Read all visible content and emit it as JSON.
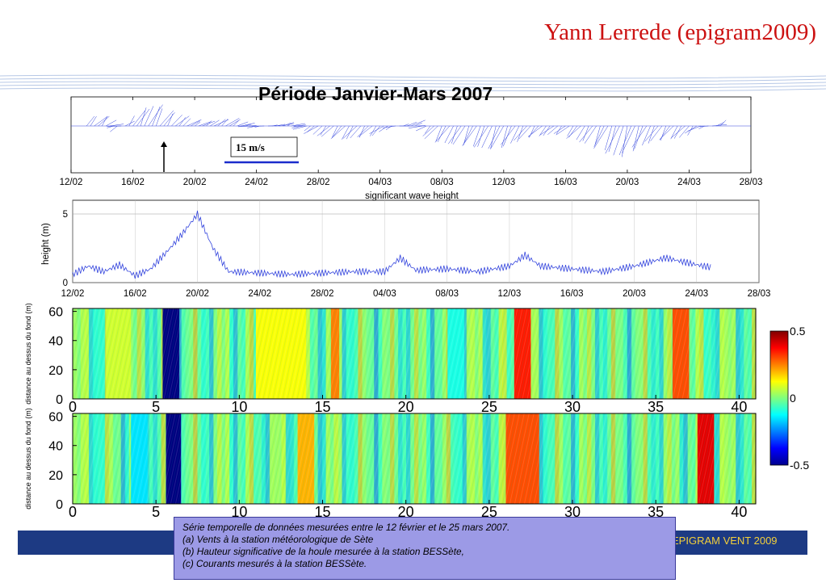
{
  "header": {
    "author": "Yann Lerrede (epigram2009)"
  },
  "footer": {
    "label": "EPIGRAM VENT 2009"
  },
  "caption": {
    "lines": [
      "Série temporelle de données mesurées entre le 12 février et le 25 mars 2007.",
      "(a)  Vents à la station météorologique de Sète",
      "(b)   Hauteur significative de la houle mesurée à la station BESSète,",
      "(c) Courants mesurés à la station BESSète."
    ]
  },
  "colors": {
    "author": "#cc1111",
    "footer_bar": "#1d3a83",
    "footer_text": "#f3cf3a",
    "caption_bg": "#9c9ae6",
    "series_line": "#3344dd"
  },
  "chart_data": [
    {
      "type": "line",
      "title": "Période Janvier-Mars 2007",
      "subtype": "wind stick plot",
      "x_ticks": [
        "12/02",
        "16/02",
        "20/02",
        "24/02",
        "28/02",
        "04/03",
        "08/03",
        "12/03",
        "16/03",
        "20/03",
        "24/03",
        "28/03"
      ],
      "scale_label": "15 m/s",
      "series": [
        {
          "x": [
            "14/02",
            "15/02",
            "16/02",
            "17/02",
            "18/02",
            "20/02",
            "22/02",
            "24/02",
            "26/02",
            "28/02",
            "02/03",
            "04/03",
            "06/03",
            "08/03",
            "10/03",
            "12/03",
            "14/03",
            "16/03",
            "18/03",
            "20/03",
            "22/03",
            "24/03",
            "26/03"
          ],
          "values": [
            5,
            -3,
            8,
            11,
            7,
            2,
            4,
            -1,
            2,
            -4,
            -7,
            -5,
            3,
            -8,
            -10,
            -12,
            -6,
            -4,
            -9,
            -16,
            -8,
            -6,
            3
          ]
        }
      ]
    },
    {
      "type": "line",
      "title": "significant wave height",
      "ylabel": "height (m)",
      "ylim": [
        0,
        6
      ],
      "y_ticks": [
        "0",
        "5"
      ],
      "x_ticks": [
        "12/02",
        "16/02",
        "20/02",
        "24/02",
        "28/02",
        "04/03",
        "08/03",
        "12/03",
        "16/03",
        "20/03",
        "24/03",
        "28/03"
      ],
      "series": [
        {
          "x": [
            "12/02",
            "13/02",
            "14/02",
            "15/02",
            "16/02",
            "17/02",
            "18/02",
            "19/02",
            "20/02",
            "21/02",
            "22/02",
            "24/02",
            "26/02",
            "28/02",
            "02/03",
            "04/03",
            "05/03",
            "06/03",
            "08/03",
            "10/03",
            "12/03",
            "13/03",
            "14/03",
            "16/03",
            "18/03",
            "20/03",
            "21/03",
            "22/03",
            "24/03",
            "25/03"
          ],
          "values": [
            0.6,
            1.2,
            0.8,
            1.3,
            0.5,
            1.0,
            2.2,
            3.5,
            5.0,
            2.5,
            0.8,
            0.7,
            0.6,
            0.7,
            0.8,
            0.8,
            1.8,
            0.9,
            1.0,
            0.8,
            1.2,
            2.0,
            1.2,
            1.0,
            0.8,
            1.2,
            1.5,
            1.8,
            1.3,
            1.1
          ]
        }
      ]
    },
    {
      "type": "heatmap",
      "ylabel": "distance au dessus du fond (m)",
      "x_ticks": [
        "0",
        "5",
        "10",
        "15",
        "20",
        "25",
        "30",
        "35",
        "40"
      ],
      "y_ticks": [
        "0",
        "20",
        "40",
        "60"
      ],
      "xlim": [
        0,
        41
      ],
      "ylim": [
        0,
        62
      ],
      "colorbar": {
        "min": -0.5,
        "max": 0.5,
        "ticks": [
          "0.5",
          "0",
          "-0.5"
        ]
      },
      "bands": [
        {
          "x_start": 5.4,
          "x_end": 6.4,
          "value": -0.6
        },
        {
          "x_start": 2.0,
          "x_end": 3.5,
          "value": 0.08
        },
        {
          "x_start": 11.0,
          "x_end": 14.0,
          "value": 0.12
        },
        {
          "x_start": 15.5,
          "x_end": 16.0,
          "value": 0.25
        },
        {
          "x_start": 22.5,
          "x_end": 23.5,
          "value": -0.1
        },
        {
          "x_start": 26.5,
          "x_end": 27.5,
          "value": 0.35
        },
        {
          "x_start": 36.0,
          "x_end": 37.0,
          "value": 0.3
        }
      ]
    },
    {
      "type": "heatmap",
      "ylabel": "distance au dessus du fond (m)",
      "x_ticks": [
        "0",
        "5",
        "10",
        "15",
        "20",
        "25",
        "30",
        "35",
        "40"
      ],
      "y_ticks": [
        "0",
        "20",
        "40",
        "60"
      ],
      "xlim": [
        0,
        41
      ],
      "ylim": [
        0,
        62
      ],
      "bands": [
        {
          "x_start": 5.6,
          "x_end": 6.5,
          "value": -0.55
        },
        {
          "x_start": 3.5,
          "x_end": 4.5,
          "value": -0.15
        },
        {
          "x_start": 13.5,
          "x_end": 14.5,
          "value": 0.2
        },
        {
          "x_start": 26.0,
          "x_end": 28.0,
          "value": 0.3
        },
        {
          "x_start": 37.5,
          "x_end": 38.5,
          "value": 0.4
        }
      ]
    }
  ]
}
